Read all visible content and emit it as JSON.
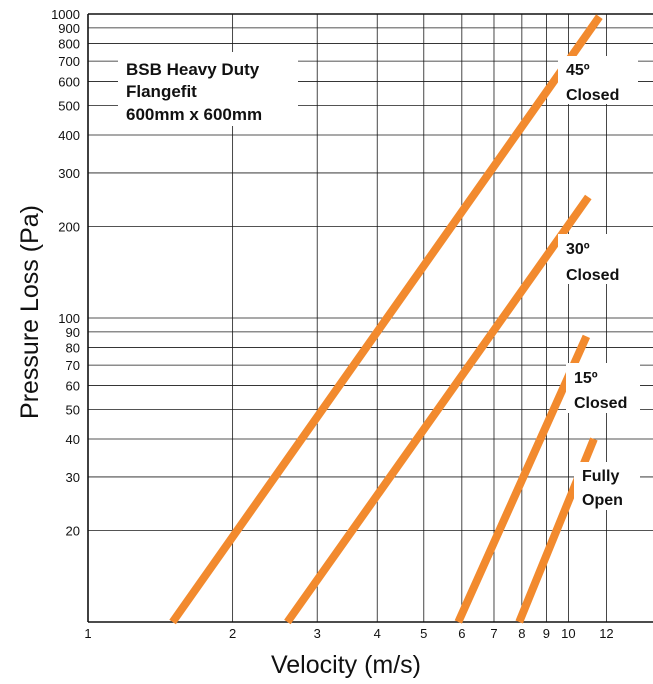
{
  "chart_data": {
    "type": "line",
    "title": "",
    "xlabel": "Velocity (m/s)",
    "ylabel": "Pressure Loss (Pa)",
    "x_scale": "log",
    "y_scale": "log",
    "xlim": [
      1,
      15
    ],
    "ylim": [
      10,
      1000
    ],
    "grid": true,
    "line_color": "#f28a2e",
    "x_ticks": [
      1,
      2,
      3,
      4,
      5,
      6,
      7,
      8,
      9,
      10,
      12
    ],
    "x_tick_labels": [
      "1",
      "2",
      "3",
      "4",
      "5",
      "6",
      "7",
      "8",
      "9",
      "10",
      "12"
    ],
    "y_ticks": [
      20,
      30,
      40,
      50,
      60,
      70,
      80,
      90,
      100,
      200,
      300,
      400,
      500,
      600,
      700,
      800,
      900,
      1000
    ],
    "y_tick_labels": [
      "20",
      "30",
      "40",
      "50",
      "60",
      "70",
      "80",
      "90",
      "100",
      "200",
      "300",
      "400",
      "500",
      "600",
      "700",
      "800",
      "900",
      "1000"
    ],
    "annotation": [
      "BSB Heavy Duty",
      "Flangefit",
      "600mm x 600mm"
    ],
    "series": [
      {
        "name": "45º Closed",
        "label_lines": [
          "45º",
          "Closed"
        ],
        "x": [
          1.5,
          11.6
        ],
        "y": [
          10,
          980
        ]
      },
      {
        "name": "30º Closed",
        "label_lines": [
          "30º",
          "Closed"
        ],
        "x": [
          2.6,
          11.0
        ],
        "y": [
          10,
          250
        ]
      },
      {
        "name": "15º Closed",
        "label_lines": [
          "15º",
          "Closed"
        ],
        "x": [
          5.9,
          10.9
        ],
        "y": [
          10,
          87
        ]
      },
      {
        "name": "Fully Open",
        "label_lines": [
          "Fully",
          "Open"
        ],
        "x": [
          7.9,
          11.3
        ],
        "y": [
          10,
          40
        ]
      }
    ]
  }
}
